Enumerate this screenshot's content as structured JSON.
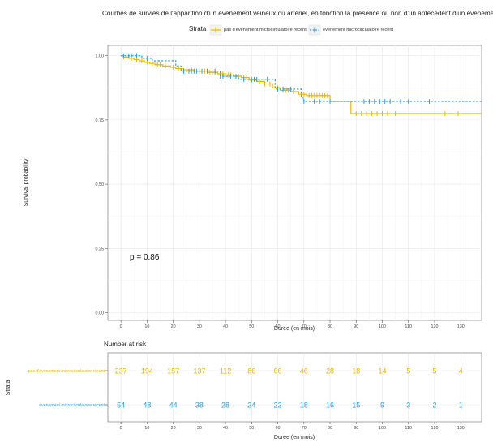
{
  "chart_data": {
    "type": "line",
    "title": "Courbes de survies de l'apparition d'un événement veineux ou artériel, en fonction la présence ou non d'un antécédent d'un événement micro",
    "legend": {
      "title": "Strata",
      "position": "top",
      "labels": [
        "pas d'événement microcirculatoire récent",
        "événement microcirculatoire récent"
      ]
    },
    "xlabel": "Durée (en mois)",
    "ylabel": "Survival probability",
    "xlim": [
      -5,
      138
    ],
    "ylim": [
      -0.03,
      1.04
    ],
    "x_ticks": [
      0,
      10,
      20,
      30,
      40,
      50,
      60,
      70,
      80,
      90,
      100,
      110,
      120,
      130
    ],
    "y_ticks": [
      0.0,
      0.25,
      0.5,
      0.75,
      1.0
    ],
    "y_tick_labels": [
      "0.00",
      "0.25",
      "0.50",
      "0.75",
      "1.00"
    ],
    "grid": true,
    "p_value": "p = 0.86",
    "series": [
      {
        "name": "pas d'événement microcirculatoire récent",
        "color": "#E7B800",
        "line_style": "solid",
        "steps": [
          [
            0,
            1.0
          ],
          [
            1,
            0.995
          ],
          [
            3,
            0.99
          ],
          [
            5,
            0.985
          ],
          [
            7,
            0.98
          ],
          [
            9,
            0.975
          ],
          [
            11,
            0.97
          ],
          [
            13,
            0.965
          ],
          [
            16,
            0.96
          ],
          [
            19,
            0.955
          ],
          [
            21,
            0.95
          ],
          [
            24,
            0.945
          ],
          [
            28,
            0.94
          ],
          [
            33,
            0.935
          ],
          [
            37,
            0.93
          ],
          [
            40,
            0.925
          ],
          [
            43,
            0.92
          ],
          [
            46,
            0.915
          ],
          [
            49,
            0.905
          ],
          [
            52,
            0.9
          ],
          [
            55,
            0.89
          ],
          [
            58,
            0.875
          ],
          [
            61,
            0.865
          ],
          [
            65,
            0.86
          ],
          [
            68,
            0.85
          ],
          [
            71,
            0.845
          ],
          [
            80,
            0.822
          ],
          [
            88,
            0.775
          ],
          [
            138,
            0.775
          ]
        ],
        "censor_x": [
          1,
          2,
          4,
          6,
          8,
          10,
          12,
          14,
          15,
          17,
          20,
          22,
          25,
          27,
          30,
          32,
          34,
          35,
          36,
          38,
          39,
          41,
          42,
          44,
          45,
          47,
          48,
          50,
          53,
          55,
          57,
          60,
          62,
          63,
          64,
          66,
          69,
          70,
          72,
          73,
          74,
          75,
          76,
          77,
          78,
          79,
          90,
          92,
          94,
          96,
          98,
          100,
          102,
          105,
          124,
          129
        ]
      },
      {
        "name": "événement microcirculatoire récent",
        "color": "#2E9FDF",
        "line_style": "dashed",
        "steps": [
          [
            0,
            1.0
          ],
          [
            8,
            0.99
          ],
          [
            12,
            0.98
          ],
          [
            21,
            0.96
          ],
          [
            23,
            0.94
          ],
          [
            30,
            0.94
          ],
          [
            38,
            0.92
          ],
          [
            45,
            0.908
          ],
          [
            59,
            0.87
          ],
          [
            69,
            0.835
          ],
          [
            70,
            0.822
          ],
          [
            138,
            0.822
          ]
        ],
        "censor_x": [
          1,
          2,
          3,
          4,
          6,
          10,
          24,
          26,
          27,
          28,
          29,
          31,
          33,
          36,
          38,
          39,
          42,
          44,
          47,
          50,
          51,
          52,
          56,
          60,
          62,
          65,
          70,
          74,
          76,
          80,
          93,
          95,
          97,
          99,
          101,
          103,
          107,
          110,
          118
        ]
      }
    ],
    "risk_table": {
      "title": "Number at risk",
      "y_title": "Strata",
      "xlabel": "Durée (en mois)",
      "times": [
        0,
        10,
        20,
        30,
        40,
        50,
        60,
        70,
        80,
        90,
        100,
        110,
        120,
        130
      ],
      "rows": [
        {
          "label": "pas d'événement microcirculatoire récent",
          "color": "#E7B800",
          "values": [
            237,
            194,
            157,
            137,
            112,
            86,
            66,
            46,
            28,
            18,
            14,
            5,
            5,
            4
          ]
        },
        {
          "label": "événement microcirculatoire récent",
          "color": "#2E9FDF",
          "values": [
            54,
            48,
            44,
            38,
            28,
            24,
            22,
            18,
            16,
            15,
            9,
            3,
            2,
            1
          ]
        }
      ]
    }
  }
}
